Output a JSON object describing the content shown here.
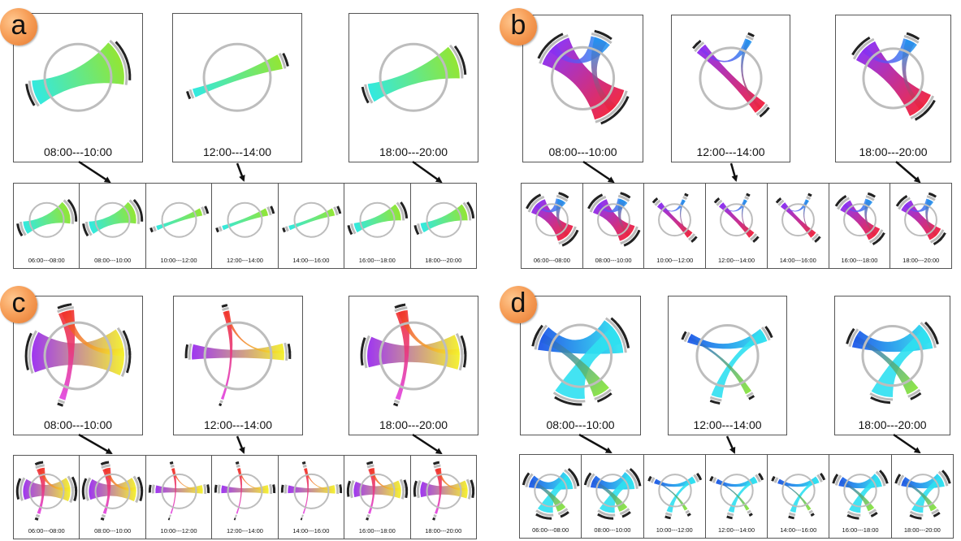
{
  "panels": [
    {
      "letter": "a",
      "big_labels": [
        "08:00---10:00",
        "12:00---14:00",
        "18:00---20:00"
      ],
      "strip_labels": [
        "06:00---08:00",
        "08:00---10:00",
        "10:00---12:00",
        "12:00---14:00",
        "14:00---16:00",
        "16:00---18:00",
        "18:00---20:00"
      ],
      "colors": {
        "start": "#27e8e0",
        "end": "#8de52a"
      }
    },
    {
      "letter": "b",
      "big_labels": [
        "08:00---10:00",
        "12:00---14:00",
        "18:00---20:00"
      ],
      "strip_labels": [
        "06:00---08:00",
        "08:00---10:00",
        "10:00---12:00",
        "12:00---14:00",
        "14:00---16:00",
        "16:00---18:00",
        "18:00---20:00"
      ],
      "colors": {
        "purple": "#8b2cf0",
        "blue": "#1e90f0",
        "red": "#f0203c"
      }
    },
    {
      "letter": "c",
      "big_labels": [
        "08:00---10:00",
        "12:00---14:00",
        "18:00---20:00"
      ],
      "strip_labels": [
        "06:00---08:00",
        "08:00---10:00",
        "10:00---12:00",
        "12:00---14:00",
        "14:00---16:00",
        "16:00---18:00",
        "18:00---20:00"
      ],
      "colors": {
        "purple": "#9a2cf0",
        "yellow": "#f4f02a",
        "red": "#f0302a",
        "magenta": "#e040e0"
      }
    },
    {
      "letter": "d",
      "big_labels": [
        "08:00---10:00",
        "12:00---14:00",
        "18:00---20:00"
      ],
      "strip_labels": [
        "06:00---08:00",
        "08:00---10:00",
        "10:00---12:00",
        "12:00---14:00",
        "14:00---16:00",
        "16:00---18:00",
        "18:00---20:00"
      ],
      "colors": {
        "blue": "#1e5ae8",
        "cyan": "#2ee0f0",
        "green": "#7ae02a"
      }
    }
  ]
}
